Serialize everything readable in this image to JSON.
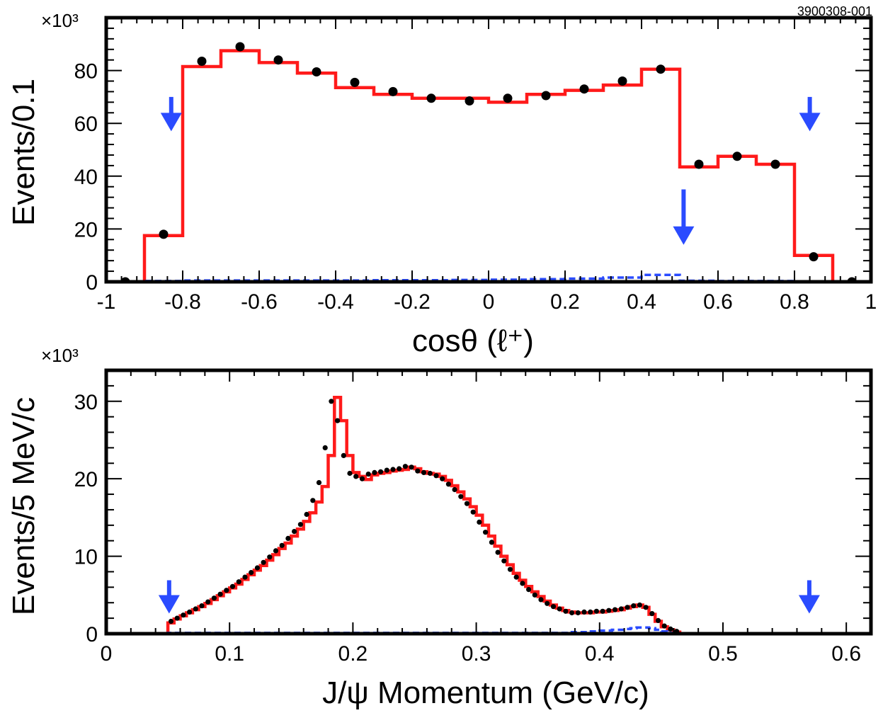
{
  "figure_id": "3900308-001",
  "colors": {
    "mc": "#ff1a1a",
    "background": "#2a4bff",
    "data": "#000000",
    "arrow": "#2a4bff"
  },
  "chart_data": [
    {
      "type": "histogram",
      "title": "",
      "xlabel": "cosθ (ℓ⁺)",
      "ylabel": "Events/0.1",
      "y_multiplier_label": "×10³",
      "xlim": [
        -1,
        1
      ],
      "ylim": [
        0,
        100
      ],
      "xticks": [
        -1,
        -0.8,
        -0.6,
        -0.4,
        -0.2,
        0,
        0.2,
        0.4,
        0.6,
        0.8,
        1
      ],
      "xtick_labels": [
        "-1",
        "-0.8",
        "-0.6",
        "-0.4",
        "-0.2",
        "0",
        "0.2",
        "0.4",
        "0.6",
        "0.8",
        "1"
      ],
      "yticks": [
        0,
        20,
        40,
        60,
        80
      ],
      "ytick_labels": [
        "0",
        "20",
        "40",
        "60",
        "80"
      ],
      "bin_edges": [
        -1,
        -0.9,
        -0.8,
        -0.7,
        -0.6,
        -0.5,
        -0.4,
        -0.3,
        -0.2,
        -0.1,
        0,
        0.1,
        0.2,
        0.3,
        0.4,
        0.5,
        0.6,
        0.7,
        0.8,
        0.9,
        1
      ],
      "series": [
        {
          "name": "",
          "style": "solid-step",
          "values": [
            0,
            17.5,
            81.5,
            87.5,
            83,
            79,
            73.5,
            71,
            69.5,
            69.5,
            68,
            71,
            72.5,
            74.5,
            80.5,
            43.5,
            47.5,
            44.5,
            10,
            0
          ]
        },
        {
          "name": "",
          "style": "dashed-step",
          "values": [
            0,
            0.3,
            0.5,
            0.5,
            0.5,
            0.5,
            0.5,
            0.6,
            0.6,
            0.7,
            0.8,
            1.0,
            1.2,
            1.6,
            2.6,
            0.4,
            0.3,
            0.3,
            0.1,
            0
          ]
        },
        {
          "name": "",
          "style": "points",
          "x": [
            -0.95,
            -0.85,
            -0.75,
            -0.65,
            -0.55,
            -0.45,
            -0.35,
            -0.25,
            -0.15,
            -0.05,
            0.05,
            0.15,
            0.25,
            0.35,
            0.45,
            0.55,
            0.65,
            0.75,
            0.85,
            0.95
          ],
          "values": [
            0,
            18,
            83.5,
            89,
            84,
            79.5,
            75.5,
            72,
            69.5,
            68.5,
            69.5,
            70.5,
            73,
            76,
            80.5,
            44.5,
            47.5,
            44.5,
            9.5,
            0
          ]
        }
      ],
      "arrows": [
        {
          "x": -0.83,
          "y_tip": 57,
          "y_tail": 70
        },
        {
          "x": 0.51,
          "y_tip": 14,
          "y_tail": 35
        },
        {
          "x": 0.84,
          "y_tip": 57,
          "y_tail": 70
        }
      ]
    },
    {
      "type": "histogram",
      "title": "",
      "xlabel": "J/ψ Momentum (GeV/c)",
      "ylabel": "Events/5 MeV/c",
      "y_multiplier_label": "×10³",
      "xlim": [
        0,
        0.62
      ],
      "ylim": [
        0,
        34
      ],
      "xticks": [
        0,
        0.1,
        0.2,
        0.3,
        0.4,
        0.5,
        0.6
      ],
      "xtick_labels": [
        "0",
        "0.1",
        "0.2",
        "0.3",
        "0.4",
        "0.5",
        "0.6"
      ],
      "yticks": [
        0,
        10,
        20,
        30
      ],
      "ytick_labels": [
        "0",
        "10",
        "20",
        "30"
      ],
      "bin_start": 0,
      "bin_width": 0.005,
      "series": [
        {
          "name": "",
          "style": "solid-step",
          "values": [
            0,
            0,
            0,
            0,
            0,
            0,
            0,
            0,
            0,
            0,
            1.4,
            1.9,
            2.3,
            2.7,
            3.1,
            3.5,
            3.9,
            4.4,
            4.9,
            5.4,
            5.9,
            6.4,
            7.0,
            7.6,
            8.2,
            8.8,
            9.5,
            10.2,
            11.0,
            11.7,
            12.6,
            13.5,
            14.5,
            15.6,
            17.0,
            19.0,
            23.0,
            30.5,
            27.5,
            23.0,
            20.8,
            20.3,
            19.9,
            20.5,
            20.7,
            20.8,
            21.0,
            21.1,
            21.2,
            21.5,
            21.3,
            20.9,
            20.7,
            20.6,
            20.3,
            19.8,
            19.1,
            18.3,
            17.4,
            16.4,
            15.3,
            14.0,
            12.6,
            11.3,
            10.0,
            8.9,
            7.8,
            6.9,
            6.1,
            5.4,
            4.8,
            4.2,
            3.7,
            3.3,
            3.0,
            2.8,
            2.7,
            2.7,
            2.7,
            2.8,
            2.8,
            2.9,
            3.0,
            3.1,
            3.3,
            3.5,
            3.7,
            3.4,
            2.5,
            1.6,
            0.9,
            0.5,
            0.2,
            0,
            0,
            0,
            0,
            0,
            0,
            0,
            0,
            0,
            0,
            0,
            0,
            0,
            0,
            0,
            0,
            0,
            0,
            0,
            0,
            0,
            0,
            0,
            0,
            0,
            0,
            0,
            0,
            0,
            0,
            0
          ]
        },
        {
          "name": "",
          "style": "dashed-step",
          "values": [
            0,
            0,
            0,
            0,
            0,
            0,
            0,
            0,
            0,
            0,
            0.1,
            0.1,
            0.1,
            0.1,
            0.1,
            0.1,
            0.1,
            0.1,
            0.1,
            0.1,
            0.1,
            0.1,
            0.1,
            0.1,
            0.1,
            0.1,
            0.1,
            0.1,
            0.1,
            0.1,
            0.1,
            0.1,
            0.1,
            0.1,
            0.1,
            0.1,
            0.1,
            0.1,
            0.1,
            0.1,
            0.1,
            0.1,
            0.1,
            0.1,
            0.1,
            0.1,
            0.1,
            0.1,
            0.1,
            0.1,
            0.1,
            0.1,
            0.1,
            0.1,
            0.1,
            0.1,
            0.1,
            0.1,
            0.1,
            0.1,
            0.1,
            0.1,
            0.1,
            0.1,
            0.1,
            0.1,
            0.1,
            0.1,
            0.1,
            0.1,
            0.1,
            0.1,
            0.1,
            0.1,
            0.1,
            0.2,
            0.2,
            0.2,
            0.3,
            0.3,
            0.4,
            0.4,
            0.5,
            0.5,
            0.6,
            0.7,
            0.8,
            0.8,
            0.7,
            0.5,
            0.3,
            0.1,
            0,
            0,
            0,
            0,
            0,
            0,
            0,
            0,
            0,
            0,
            0,
            0,
            0,
            0,
            0,
            0,
            0,
            0,
            0,
            0,
            0,
            0,
            0,
            0,
            0,
            0,
            0,
            0,
            0,
            0,
            0,
            0
          ]
        },
        {
          "name": "",
          "style": "points",
          "x_start": 0.0525,
          "x_step": 0.005,
          "values": [
            1.6,
            2.0,
            2.4,
            2.8,
            3.2,
            3.6,
            4.1,
            4.6,
            5.1,
            5.6,
            6.1,
            6.7,
            7.3,
            7.9,
            8.5,
            9.2,
            9.9,
            10.7,
            11.4,
            12.3,
            13.2,
            14.1,
            15.4,
            17.2,
            19.5,
            24.0,
            30.0,
            27.5,
            23.0,
            20.7,
            20.3,
            20.0,
            20.6,
            20.8,
            20.9,
            21.1,
            21.2,
            21.3,
            21.6,
            21.5,
            21.0,
            20.8,
            20.7,
            20.4,
            20.0,
            19.3,
            18.6,
            17.7,
            16.8,
            15.7,
            14.4,
            13.1,
            11.8,
            10.5,
            9.4,
            8.3,
            7.3,
            6.5,
            5.7,
            5.0,
            4.4,
            3.9,
            3.5,
            3.2,
            2.9,
            2.7,
            2.7,
            2.8,
            2.8,
            2.9,
            2.9,
            3.0,
            3.1,
            3.2,
            3.4,
            3.6,
            3.7,
            3.4,
            2.6,
            1.7,
            1.0,
            0.6,
            0.3
          ]
        }
      ],
      "arrows": [
        {
          "x": 0.051,
          "y_tip": 2.6,
          "y_tail": 6.9
        },
        {
          "x": 0.57,
          "y_tip": 2.6,
          "y_tail": 6.9
        }
      ]
    }
  ]
}
